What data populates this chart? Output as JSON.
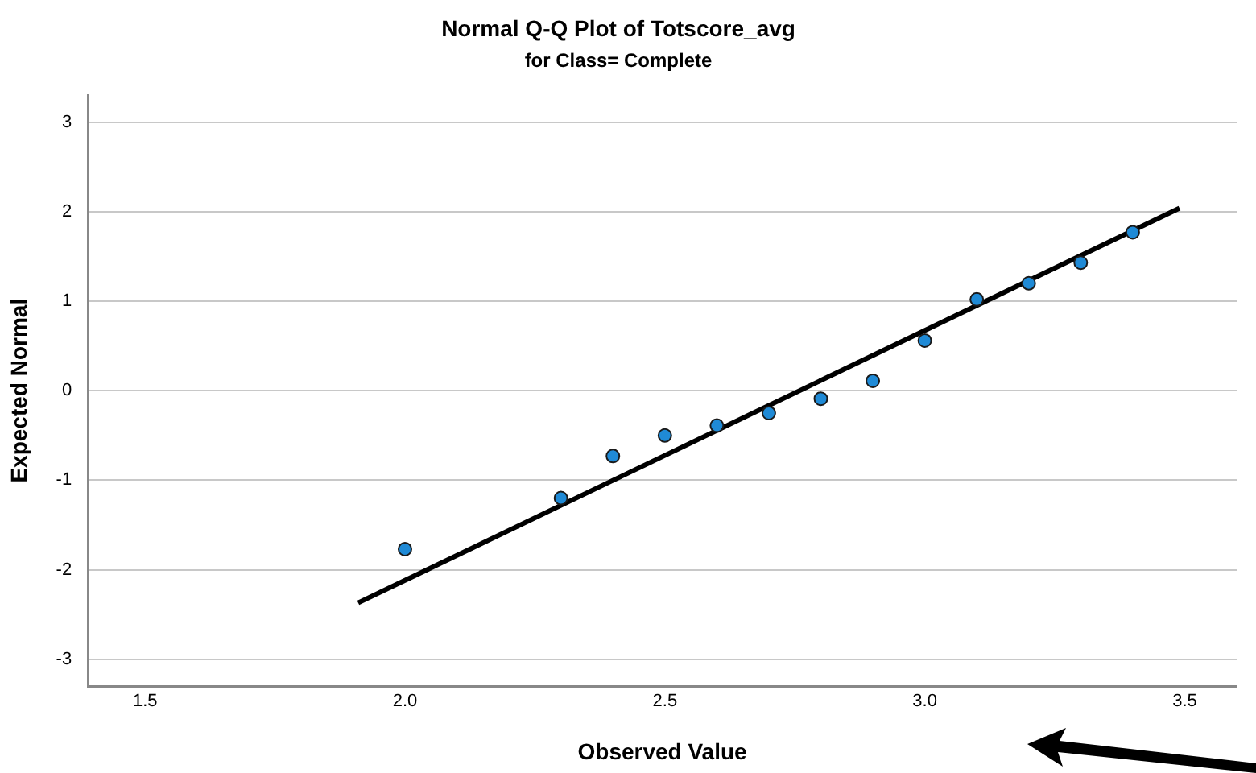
{
  "chart_data": {
    "type": "scatter",
    "title": "Normal Q-Q Plot of Totscore_avg",
    "subtitle": "for Class= Complete",
    "xlabel": "Observed Value",
    "ylabel": "Expected Normal",
    "xlim": [
      1.39,
      3.6
    ],
    "xticks": [
      {
        "value": 1.5,
        "label": "1.5"
      },
      {
        "value": 2,
        "label": "2.0"
      },
      {
        "value": 2.5,
        "label": "2.5"
      },
      {
        "value": 3,
        "label": "3.0"
      },
      {
        "value": 3.5,
        "label": "3.5"
      }
    ],
    "ylim": [
      -3.3,
      3.3
    ],
    "yticks": [
      -3,
      -2,
      -1,
      0,
      1,
      2,
      3
    ],
    "grid": "y",
    "legend": false,
    "marker": "circle",
    "series": [
      {
        "type": "scatter",
        "color": "#1f8ad6",
        "x": [
          2.0,
          2.3,
          2.4,
          2.5,
          2.6,
          2.7,
          2.8,
          2.9,
          3.0,
          3.1,
          3.2,
          3.3,
          3.4
        ],
        "values": [
          -1.77,
          -1.2,
          -0.73,
          -0.5,
          -0.39,
          -0.25,
          -0.09,
          0.11,
          0.56,
          1.02,
          1.2,
          1.43,
          1.77
        ]
      },
      {
        "type": "line",
        "color": "#000000",
        "marker": "none",
        "line_style": "solid",
        "x": [
          1.91,
          3.49
        ],
        "values": [
          -2.37,
          2.04
        ]
      }
    ]
  }
}
